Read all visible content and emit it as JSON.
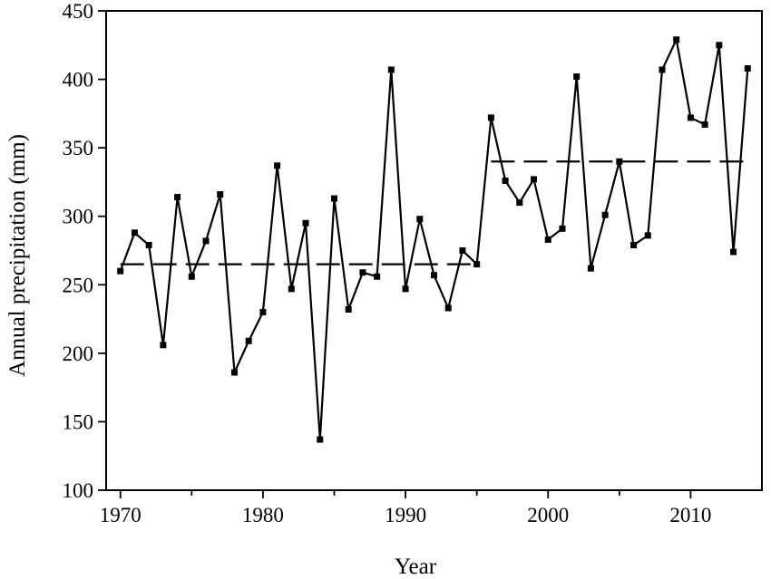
{
  "chart_data": {
    "type": "line",
    "title": "",
    "xlabel": "Year",
    "ylabel": "Annual precipitation (mm)",
    "xlim": [
      1969,
      2015
    ],
    "ylim": [
      100,
      450
    ],
    "xticks": [
      1970,
      1980,
      1990,
      2000,
      2010
    ],
    "yticks": [
      100,
      150,
      200,
      250,
      300,
      350,
      400,
      450
    ],
    "grid": false,
    "legend": "none",
    "series": [
      {
        "x": [
          1970,
          1971,
          1972,
          1973,
          1974,
          1975,
          1976,
          1977,
          1978,
          1979,
          1980,
          1981,
          1982,
          1983,
          1984,
          1985,
          1986,
          1987,
          1988,
          1989,
          1990,
          1991,
          1992,
          1993,
          1994,
          1995,
          1996,
          1997,
          1998,
          1999,
          2000,
          2001,
          2002,
          2003,
          2004,
          2005,
          2006,
          2007,
          2008,
          2009,
          2010,
          2011,
          2012,
          2013,
          2014
        ],
        "values": [
          260,
          288,
          279,
          206,
          314,
          256,
          282,
          316,
          186,
          209,
          230,
          337,
          247,
          295,
          137,
          313,
          232,
          259,
          256,
          407,
          247,
          298,
          257,
          233,
          275,
          265,
          372,
          326,
          310,
          327,
          283,
          291,
          402,
          262,
          301,
          340,
          279,
          286,
          407,
          429,
          372,
          367,
          425,
          274,
          408
        ],
        "marker": "square",
        "color": "#000000"
      }
    ],
    "reference_lines": [
      {
        "x": [
          1970,
          1995
        ],
        "y": 265,
        "style": "dashed",
        "color": "#000000"
      },
      {
        "x": [
          1996,
          2014
        ],
        "y": 340,
        "style": "dashed",
        "color": "#000000"
      }
    ]
  }
}
